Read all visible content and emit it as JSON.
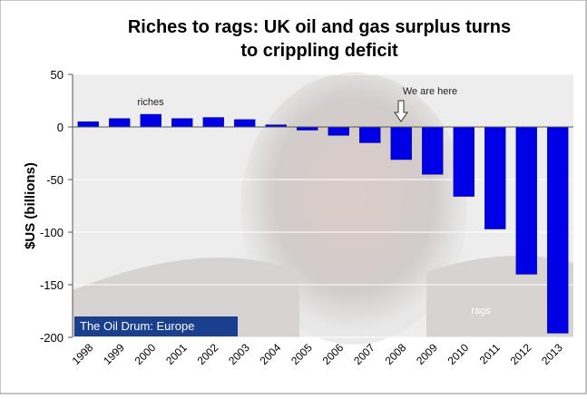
{
  "chart_data": {
    "type": "bar",
    "title": [
      "Riches to rags: UK oil and gas surplus turns",
      "to crippling deficit"
    ],
    "y_label": "$US (billions)",
    "categories": [
      "1998",
      "1999",
      "2000",
      "2001",
      "2002",
      "2003",
      "2004",
      "2005",
      "2006",
      "2007",
      "2008",
      "2009",
      "2010",
      "2011",
      "2012",
      "2013"
    ],
    "values": [
      5,
      8,
      12,
      8,
      9,
      7,
      2,
      -3,
      -8,
      -15,
      -31,
      -45,
      -66,
      -97,
      -140,
      -196
    ],
    "color": "#0000e6",
    "ylim": [
      -200,
      50
    ],
    "yticks": [
      -200,
      -150,
      -100,
      -50,
      0,
      50
    ],
    "grid": true,
    "annotations": {
      "riches": "riches",
      "here": "We are here",
      "rags": "rags"
    },
    "logo": "The Oil Drum: Europe"
  }
}
